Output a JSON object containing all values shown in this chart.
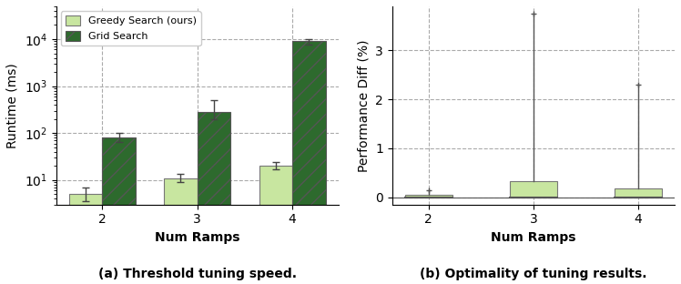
{
  "left": {
    "categories": [
      2,
      3,
      4
    ],
    "greedy_median": [
      5.0,
      11.0,
      20.0
    ],
    "greedy_err_lo": [
      1.5,
      2.0,
      3.5
    ],
    "greedy_err_hi": [
      2.0,
      2.5,
      4.0
    ],
    "grid_median": [
      80.0,
      280.0,
      9000.0
    ],
    "grid_err_lo": [
      15.0,
      80.0,
      1500.0
    ],
    "grid_err_hi": [
      20.0,
      220.0,
      1200.0
    ],
    "ylabel": "Runtime (ms)",
    "xlabel": "Num Ramps",
    "caption": "(a) Threshold tuning speed.",
    "legend_greedy": "Greedy Search (ours)",
    "legend_grid": "Grid Search",
    "greedy_color": "#c8e6a0",
    "grid_color": "#2d6a2d",
    "bar_width": 0.35,
    "ylim_log": [
      3,
      50000
    ]
  },
  "right": {
    "categories": [
      2,
      3,
      4
    ],
    "median": [
      0.0,
      0.0,
      0.0
    ],
    "q1": [
      0.0,
      0.0,
      0.0
    ],
    "q3": [
      0.04,
      0.32,
      0.18
    ],
    "whisker_min": [
      0.0,
      0.0,
      0.0
    ],
    "whisker_max": [
      0.14,
      3.75,
      2.3
    ],
    "ylabel": "Performance Diff (%)",
    "xlabel": "Num Ramps",
    "caption": "(b) Optimality of tuning results.",
    "bar_color": "#c8e6a0",
    "bar_width": 0.45,
    "ylim": [
      -0.15,
      3.9
    ]
  },
  "background_color": "#ffffff"
}
